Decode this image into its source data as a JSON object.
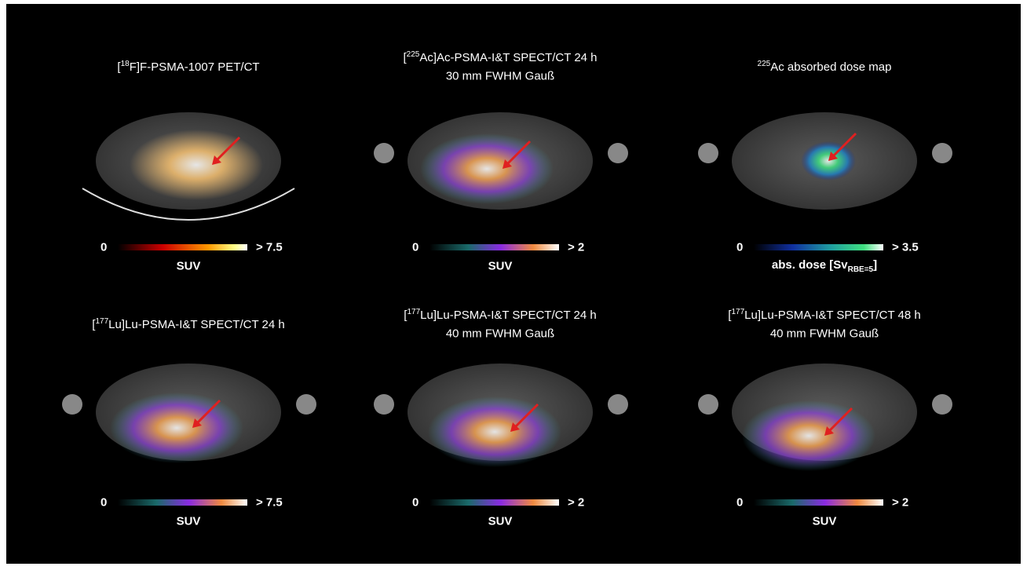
{
  "panels": [
    {
      "title": [
        [
          {
            "text": "["
          },
          {
            "sup": "18"
          },
          {
            "text": "F]F-PSMA-1007 PET/CT"
          }
        ]
      ],
      "colorbar": {
        "min": 0,
        "max": "> 7.5",
        "unit": [
          {
            "text": "SUV"
          }
        ]
      }
    },
    {
      "title": [
        [
          {
            "text": "["
          },
          {
            "sup": "225"
          },
          {
            "text": "Ac]Ac-PSMA-I&T SPECT/CT 24 h"
          }
        ],
        [
          {
            "text": "30 mm FWHM Gauß"
          }
        ]
      ],
      "colorbar": {
        "min": 0,
        "max": "> 2",
        "unit": [
          {
            "text": "SUV"
          }
        ]
      }
    },
    {
      "title": [
        [
          {
            "sup": "225"
          },
          {
            "text": "Ac absorbed dose map"
          }
        ]
      ],
      "colorbar": {
        "min": 0,
        "max": "> 3.5",
        "unit": [
          {
            "text": "abs. dose [Sv"
          },
          {
            "sub": "RBE=5"
          },
          {
            "text": "]"
          }
        ]
      }
    },
    {
      "title": [
        [
          {
            "text": "["
          },
          {
            "sup": "177"
          },
          {
            "text": "Lu]Lu-PSMA-I&T SPECT/CT 24 h"
          }
        ]
      ],
      "colorbar": {
        "min": 0,
        "max": "> 7.5",
        "unit": [
          {
            "text": "SUV"
          }
        ]
      }
    },
    {
      "title": [
        [
          {
            "text": "["
          },
          {
            "sup": "177"
          },
          {
            "text": "Lu]Lu-PSMA-I&T SPECT/CT 24 h"
          }
        ],
        [
          {
            "text": "40 mm FWHM Gauß"
          }
        ]
      ],
      "colorbar": {
        "min": 0,
        "max": "> 2",
        "unit": [
          {
            "text": "SUV"
          }
        ]
      }
    },
    {
      "title": [
        [
          {
            "text": "["
          },
          {
            "sup": "177"
          },
          {
            "text": "Lu]Lu-PSMA-I&T SPECT/CT 48 h"
          }
        ],
        [
          {
            "text": "40 mm FWHM Gauß"
          }
        ]
      ],
      "colorbar": {
        "min": 0,
        "max": "> 2",
        "unit": [
          {
            "text": "SUV"
          }
        ]
      }
    }
  ]
}
